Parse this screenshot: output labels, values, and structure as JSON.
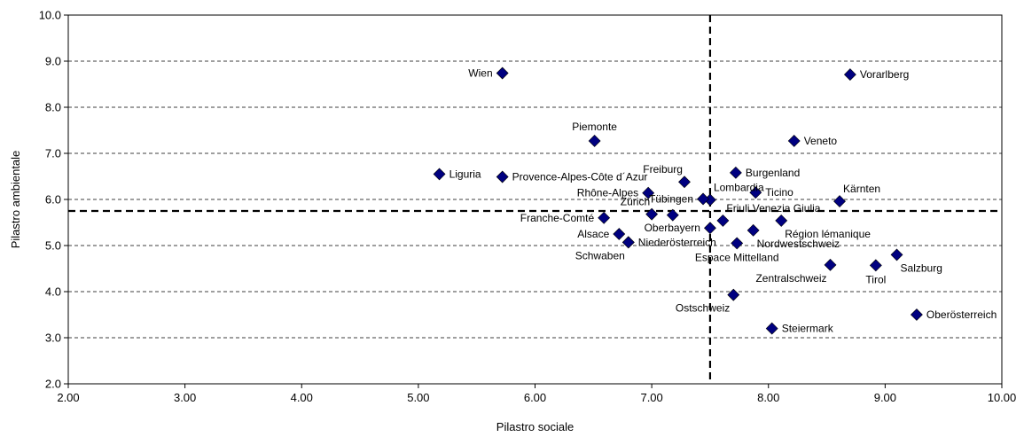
{
  "chart_data": {
    "type": "scatter",
    "xlabel": "Pilastro sociale",
    "ylabel": "Pilastro ambientale",
    "xlim": [
      2.0,
      10.0
    ],
    "ylim": [
      2.0,
      10.0
    ],
    "xticks": [
      "2.00",
      "3.00",
      "4.00",
      "5.00",
      "6.00",
      "7.00",
      "8.00",
      "9.00",
      "10.00"
    ],
    "yticks": [
      "2.0",
      "3.0",
      "4.0",
      "5.0",
      "6.0",
      "7.0",
      "8.0",
      "9.0",
      "10.0"
    ],
    "grid": "horizontal dashed",
    "reference_lines": {
      "x": 7.5,
      "y": 5.75
    },
    "marker_color": "#000080",
    "points": [
      {
        "label": "Wien",
        "x": 5.72,
        "y": 8.74,
        "anchor": "left"
      },
      {
        "label": "Vorarlberg",
        "x": 8.7,
        "y": 8.71,
        "anchor": "right"
      },
      {
        "label": "Piemonte",
        "x": 6.51,
        "y": 7.27,
        "anchor": "above"
      },
      {
        "label": "Veneto",
        "x": 8.22,
        "y": 7.27,
        "anchor": "right"
      },
      {
        "label": "Liguria",
        "x": 5.18,
        "y": 6.55,
        "anchor": "right"
      },
      {
        "label": "Provence-Alpes-Côte d´Azur",
        "x": 5.72,
        "y": 6.49,
        "anchor": "right"
      },
      {
        "label": "Burgenland",
        "x": 7.72,
        "y": 6.58,
        "anchor": "right"
      },
      {
        "label": "Freiburg",
        "x": 7.28,
        "y": 6.38,
        "anchor": "above-left"
      },
      {
        "label": "Lombardia",
        "x": 7.5,
        "y": 5.99,
        "anchor": "above-right"
      },
      {
        "label": "Rhône-Alpes",
        "x": 6.97,
        "y": 6.14,
        "anchor": "left"
      },
      {
        "label": "Ticino",
        "x": 7.89,
        "y": 6.15,
        "anchor": "right"
      },
      {
        "label": "Kärnten",
        "x": 8.61,
        "y": 5.96,
        "anchor": "above-right"
      },
      {
        "label": "Tübingen",
        "x": 7.44,
        "y": 6.01,
        "anchor": "left"
      },
      {
        "label": "Zürich",
        "x": 7.0,
        "y": 5.68,
        "anchor": "above-left"
      },
      {
        "label": "Franche-Comté",
        "x": 6.59,
        "y": 5.6,
        "anchor": "left"
      },
      {
        "label": "Friuli Venezia Giulia",
        "x": 7.61,
        "y": 5.54,
        "anchor": "above-right"
      },
      {
        "label": "Région lémanique",
        "x": 8.11,
        "y": 5.54,
        "anchor": "below-right"
      },
      {
        "label": "",
        "x": 7.18,
        "y": 5.66,
        "anchor": "none"
      },
      {
        "label": "Oberbayern",
        "x": 7.5,
        "y": 5.38,
        "anchor": "left"
      },
      {
        "label": "Alsace",
        "x": 6.72,
        "y": 5.25,
        "anchor": "left"
      },
      {
        "label": "Niederösterreich",
        "x": 6.8,
        "y": 5.07,
        "anchor": "right"
      },
      {
        "label": "Schwaben",
        "x": 6.8,
        "y": 5.07,
        "anchor": "below-left"
      },
      {
        "label": "Nordwestschweiz",
        "x": 7.87,
        "y": 5.33,
        "anchor": "below-right"
      },
      {
        "label": "Espace Mittelland",
        "x": 7.73,
        "y": 5.05,
        "anchor": "below"
      },
      {
        "label": "Salzburg",
        "x": 9.1,
        "y": 4.8,
        "anchor": "below-right"
      },
      {
        "label": "Zentralschweiz",
        "x": 8.53,
        "y": 4.58,
        "anchor": "below-left"
      },
      {
        "label": "Tirol",
        "x": 8.92,
        "y": 4.57,
        "anchor": "below"
      },
      {
        "label": "Ostschweiz",
        "x": 7.7,
        "y": 3.93,
        "anchor": "below-left"
      },
      {
        "label": "Oberösterreich",
        "x": 9.27,
        "y": 3.5,
        "anchor": "right"
      },
      {
        "label": "Steiermark",
        "x": 8.03,
        "y": 3.2,
        "anchor": "right"
      }
    ]
  }
}
